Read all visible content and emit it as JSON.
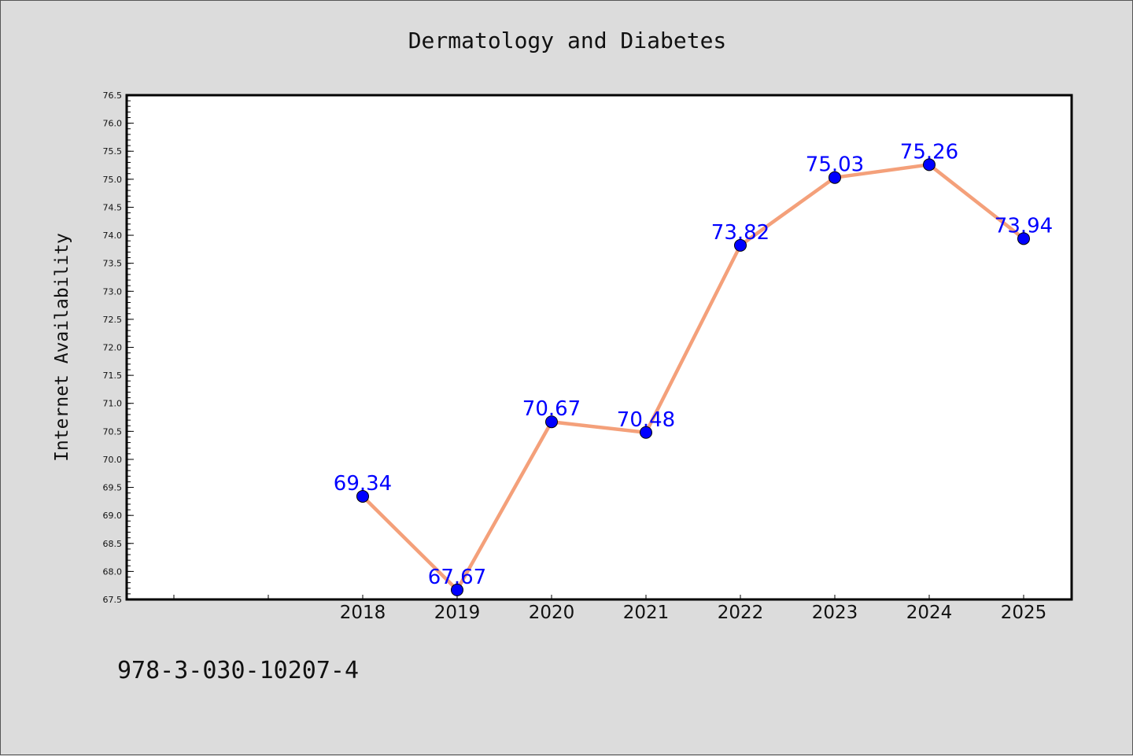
{
  "title": "Dermatology and Diabetes",
  "footer_text": "978-3-030-10207-4",
  "colors": {
    "line": "#f4a07a",
    "marker": "#0000ff",
    "label": "#0000ff",
    "frame": "#000000",
    "background": "#dcdcdc",
    "plot_bg": "#ffffff"
  },
  "chart_data": {
    "type": "line",
    "title": "Dermatology and Diabetes",
    "xlabel": "",
    "ylabel": "Internet Availability",
    "x": [
      "2018",
      "2019",
      "2020",
      "2021",
      "2022",
      "2023",
      "2024",
      "2025"
    ],
    "series": [
      {
        "values": [
          69.34,
          67.67,
          70.67,
          70.48,
          73.82,
          75.03,
          75.26,
          73.94
        ]
      }
    ],
    "data_labels": [
      "69.34",
      "67.67",
      "70.67",
      "70.48",
      "73.82",
      "75.03",
      "75.26",
      "73.94"
    ],
    "ylim": [
      67.5,
      76.5
    ],
    "yticks": [
      "67.5",
      "68.0",
      "68.5",
      "69.0",
      "69.5",
      "70.0",
      "70.5",
      "71.0",
      "71.5",
      "72.0",
      "72.5",
      "73.0",
      "73.5",
      "74.0",
      "74.5",
      "75.0",
      "75.5",
      "76.0",
      "76.5"
    ],
    "grid": false,
    "legend": "none"
  }
}
